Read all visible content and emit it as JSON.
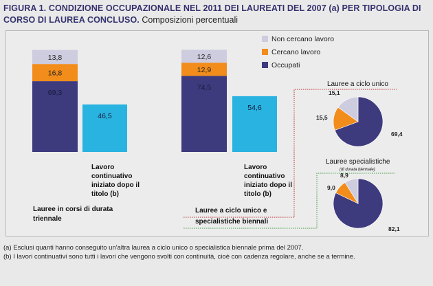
{
  "title": {
    "bold": "FIGURA 1. CONDIZIONE OCCUPAZIONALE NEL 2011 DEI LAUREATI DEL 2007 (a) PER TIPOLOGIA DI CORSO DI LAUREA CONCLUSO.",
    "subtitle": "Composizioni percentuali"
  },
  "colors": {
    "occupati": "#3d3a7e",
    "cercano": "#f28c1a",
    "non_cercano": "#ceccdf",
    "lavoro_continuativo": "#29b3e0"
  },
  "chart_data": [
    {
      "type": "bar",
      "stacked": true,
      "legend": [
        "Non cercano lavoro",
        "Cercano lavoro",
        "Occupati"
      ],
      "legend_position": "top-right",
      "ylim": [
        0,
        100
      ],
      "groups": [
        {
          "label": "Lauree in corsi di durata triennale",
          "stack": {
            "Occupati": 69.3,
            "Cercano lavoro": 16.8,
            "Non cercano lavoro": 13.8
          },
          "stack_labels": {
            "Occupati": "69,3",
            "Cercano lavoro": "16,8",
            "Non cercano lavoro": "13,8"
          },
          "lavoro_continuativo": 46.5,
          "lavoro_continuativo_label": "46,5",
          "category_label": "Lavoro continuativo iniziato dopo il titolo (b)"
        },
        {
          "label": "Lauree a ciclo unico e specialistiche biennali",
          "stack": {
            "Occupati": 74.5,
            "Cercano lavoro": 12.9,
            "Non cercano lavoro": 12.6
          },
          "stack_labels": {
            "Occupati": "74,5",
            "Cercano lavoro": "12,9",
            "Non cercano lavoro": "12,6"
          },
          "lavoro_continuativo": 54.6,
          "lavoro_continuativo_label": "54,6",
          "category_label": "Lavoro continuativo iniziato dopo il titolo (b)"
        }
      ]
    },
    {
      "type": "pie",
      "title": "Lauree a ciclo unico",
      "slices": [
        {
          "name": "Occupati",
          "value": 69.4,
          "label": "69,4"
        },
        {
          "name": "Cercano lavoro",
          "value": 15.5,
          "label": "15,5"
        },
        {
          "name": "Non cercano lavoro",
          "value": 15.1,
          "label": "15,1"
        }
      ]
    },
    {
      "type": "pie",
      "title": "Lauree specialistiche",
      "subtitle": "(di durata biennale)",
      "slices": [
        {
          "name": "Occupati",
          "value": 82.1,
          "label": "82,1"
        },
        {
          "name": "Cercano lavoro",
          "value": 9.0,
          "label": "9,0"
        },
        {
          "name": "Non cercano lavoro",
          "value": 8.9,
          "label": "8,9"
        }
      ]
    }
  ],
  "labels": {
    "cat1_line1": "Lavoro",
    "cat1_line2": "continuativo",
    "cat1_line3": "iniziato dopo il",
    "cat1_line4": "titolo (b)",
    "group1_line1": "Lauree in corsi di durata",
    "group1_line2": "triennale",
    "group2_line1": "Lauree a ciclo unico e",
    "group2_line2": "specialistiche biennali"
  },
  "notes": [
    "(a) Esclusi quanti hanno conseguito un'altra laurea a ciclo unico o specialistica biennale prima del 2007.",
    "(b) I lavori continuativi sono tutti i lavori che vengono svolti con continuità, cioè con cadenza regolare, anche se a termine."
  ]
}
